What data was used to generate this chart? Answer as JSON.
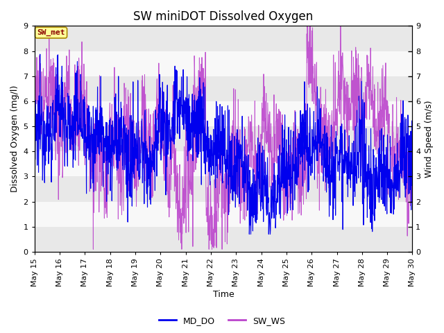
{
  "title": "SW miniDOT Dissolved Oxygen",
  "xlabel": "Time",
  "ylabel_left": "Dissolved Oxygen (mg/l)",
  "ylabel_right": "Wind Speed (m/s)",
  "ylim": [
    0.0,
    9.0
  ],
  "yticks": [
    0.0,
    1.0,
    2.0,
    3.0,
    4.0,
    5.0,
    6.0,
    7.0,
    8.0,
    9.0
  ],
  "annotation_label": "SW_met",
  "annotation_text_color": "#8B0000",
  "annotation_box_color": "#FFFF99",
  "annotation_box_edge": "#AA8800",
  "md_do_color": "#0000EE",
  "sw_ws_color": "#BB44CC",
  "legend_labels": [
    "MD_DO",
    "SW_WS"
  ],
  "background_color": "#FFFFFF",
  "band_colors": [
    "#E8E8E8",
    "#F8F8F8"
  ],
  "grid_color": "#FFFFFF",
  "title_fontsize": 12,
  "axis_label_fontsize": 9,
  "tick_fontsize": 8,
  "num_points": 1500,
  "x_start_day": 15,
  "x_end_day": 30,
  "xtick_days": [
    15,
    16,
    17,
    18,
    19,
    20,
    21,
    22,
    23,
    24,
    25,
    26,
    27,
    28,
    29,
    30
  ],
  "xtick_labels": [
    "May 15",
    "May 16",
    "May 17",
    "May 18",
    "May 19",
    "May 20",
    "May 21",
    "May 22",
    "May 23",
    "May 24",
    "May 25",
    "May 26",
    "May 27",
    "May 28",
    "May 29",
    "May 30"
  ]
}
